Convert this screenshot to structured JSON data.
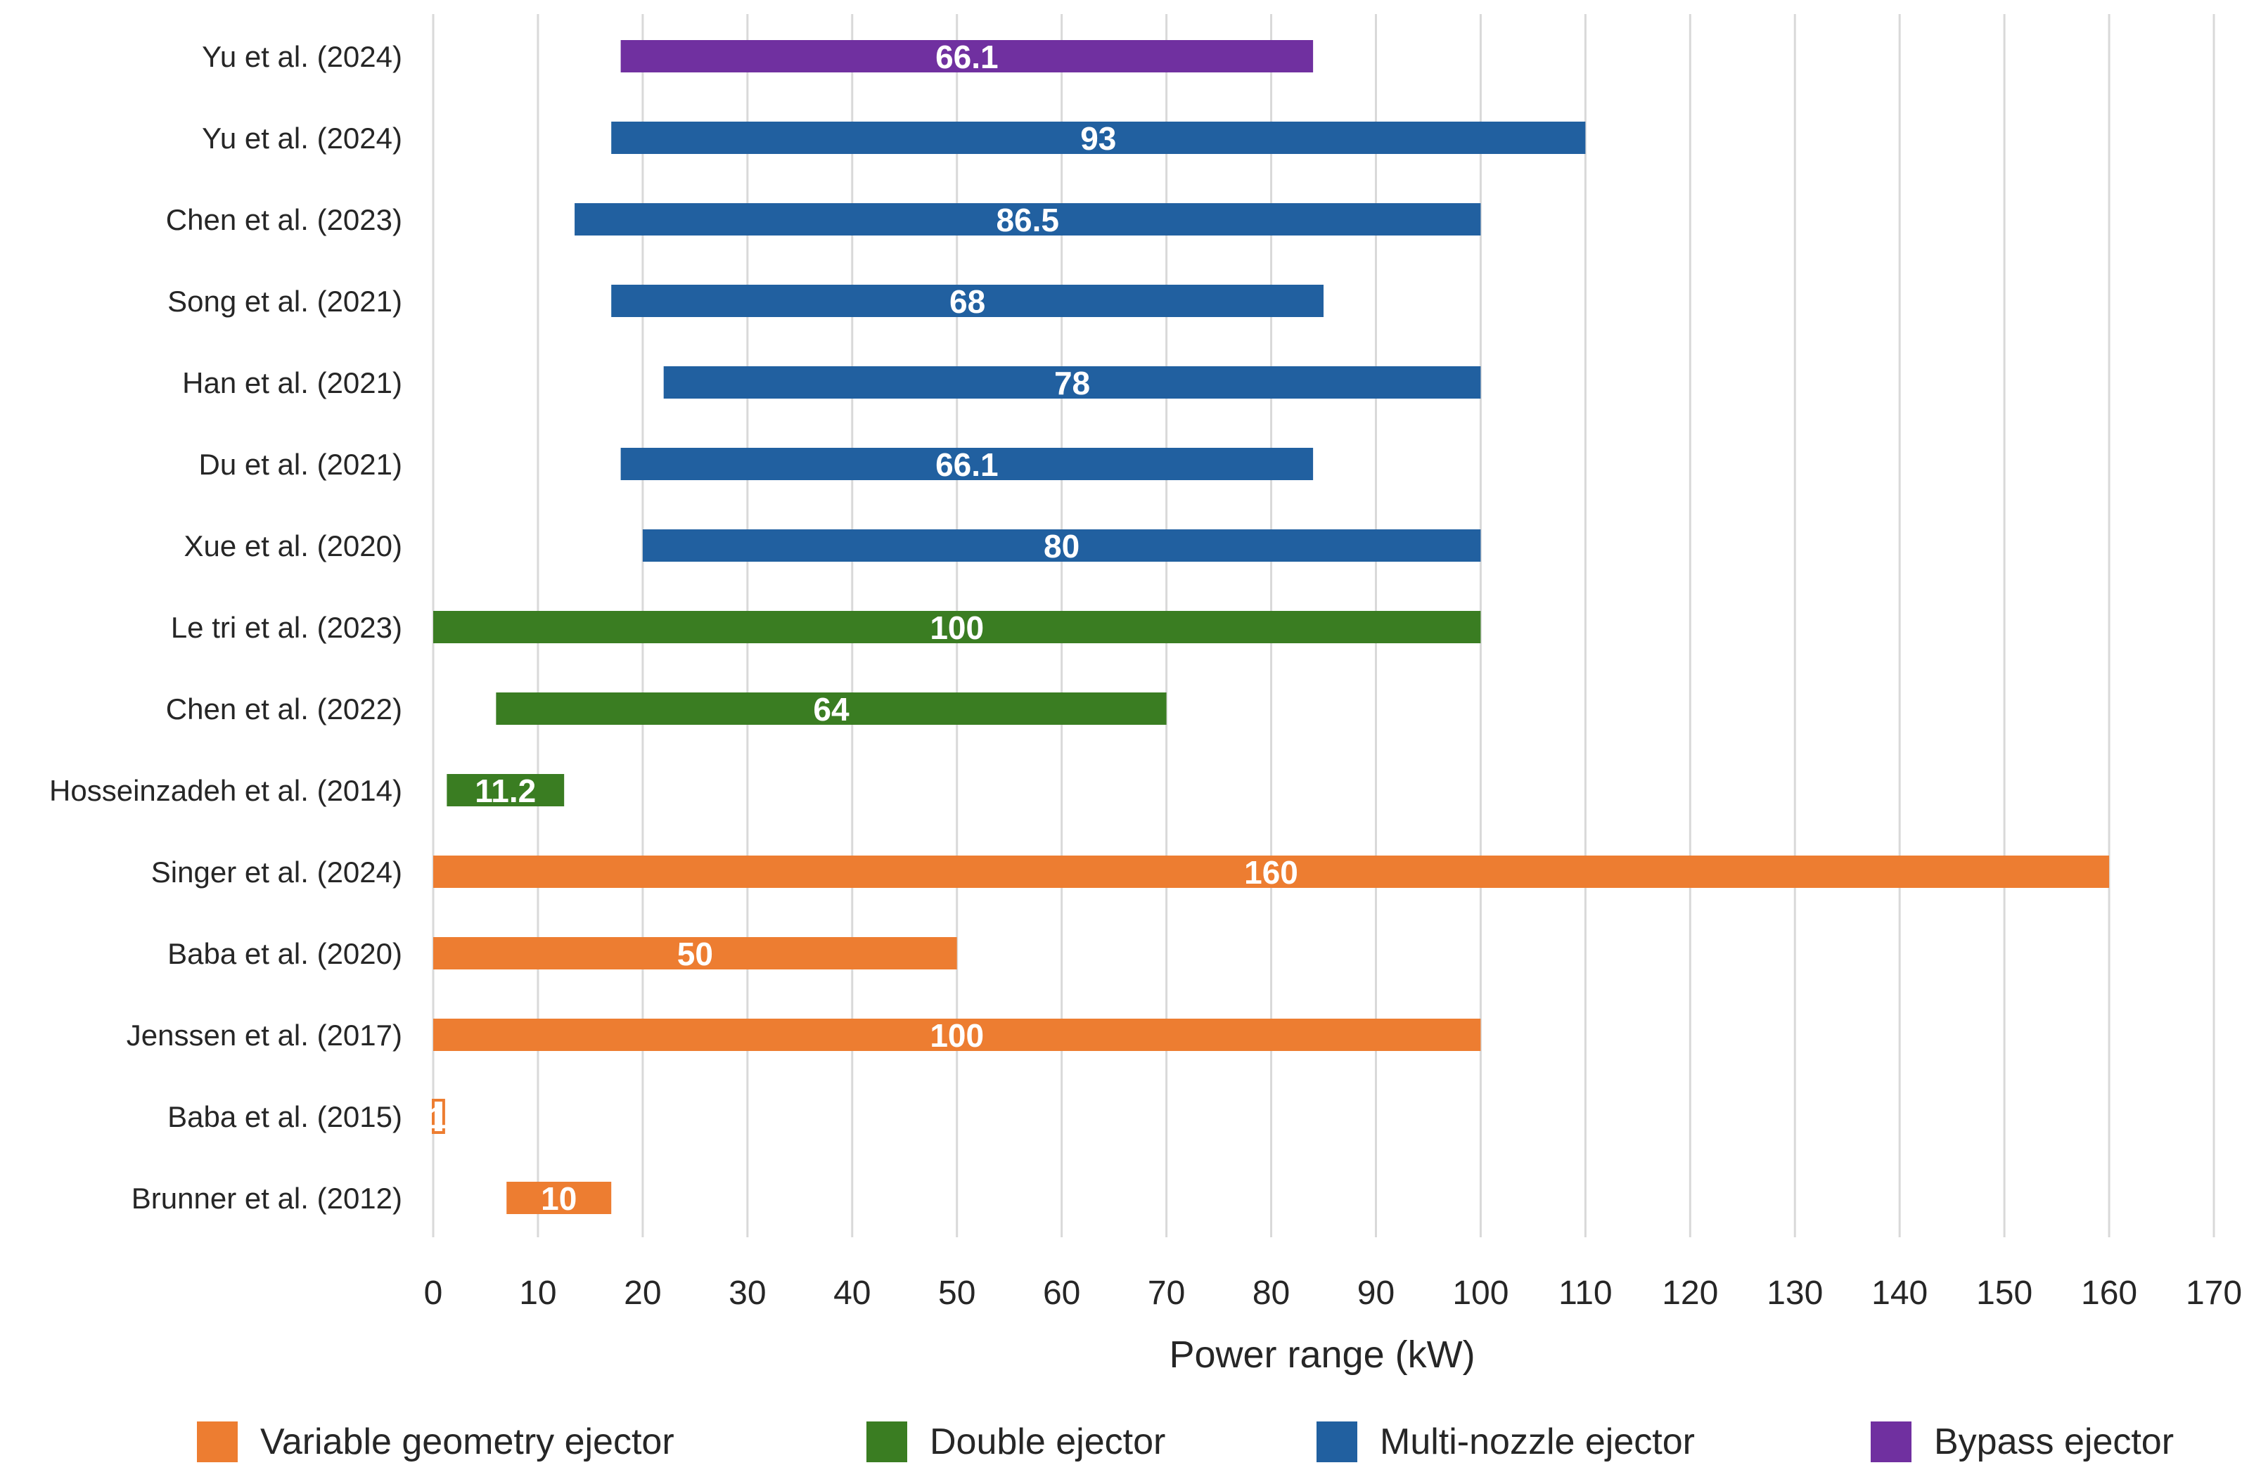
{
  "chart_data": {
    "type": "bar",
    "orientation": "horizontal",
    "title": "",
    "xlabel": "Power range (kW)",
    "ylabel": "",
    "xlim": [
      0,
      170
    ],
    "x_ticks": [
      0,
      10,
      20,
      30,
      40,
      50,
      60,
      70,
      80,
      90,
      100,
      110,
      120,
      130,
      140,
      150,
      160,
      170
    ],
    "grid": true,
    "legend_position": "bottom",
    "series_colors": {
      "Variable geometry ejector": "#ED7D31",
      "Double ejector": "#3A7D22",
      "Multi-nozzle ejector": "#2160A0",
      "Bypass ejector": "#7030A0"
    },
    "legend": [
      "Variable geometry ejector",
      "Double ejector",
      "Multi-nozzle ejector",
      "Bypass ejector"
    ],
    "bars": [
      {
        "label": "Yu et al. (2024)",
        "series": "Bypass ejector",
        "start": 17.9,
        "end": 84,
        "value_label": "66.1"
      },
      {
        "label": "Yu et al. (2024)",
        "series": "Multi-nozzle ejector",
        "start": 17,
        "end": 110,
        "value_label": "93"
      },
      {
        "label": "Chen et al. (2023)",
        "series": "Multi-nozzle ejector",
        "start": 13.5,
        "end": 100,
        "value_label": "86.5"
      },
      {
        "label": "Song et al. (2021)",
        "series": "Multi-nozzle ejector",
        "start": 17,
        "end": 85,
        "value_label": "68"
      },
      {
        "label": "Han et al. (2021)",
        "series": "Multi-nozzle ejector",
        "start": 22,
        "end": 100,
        "value_label": "78"
      },
      {
        "label": "Du et al. (2021)",
        "series": "Multi-nozzle ejector",
        "start": 17.9,
        "end": 84,
        "value_label": "66.1"
      },
      {
        "label": "Xue et al. (2020)",
        "series": "Multi-nozzle ejector",
        "start": 20,
        "end": 100,
        "value_label": "80"
      },
      {
        "label": "Le tri et al. (2023)",
        "series": "Double ejector",
        "start": 0,
        "end": 100,
        "value_label": "100"
      },
      {
        "label": "Chen et al. (2022)",
        "series": "Double ejector",
        "start": 6,
        "end": 70,
        "value_label": "64"
      },
      {
        "label": "Hosseinzadeh et al. (2014)",
        "series": "Double ejector",
        "start": 1.3,
        "end": 12.5,
        "value_label": "11.2"
      },
      {
        "label": "Singer et al. (2024)",
        "series": "Variable geometry ejector",
        "start": 0,
        "end": 160,
        "value_label": "160"
      },
      {
        "label": "Baba et al. (2020)",
        "series": "Variable geometry ejector",
        "start": 0,
        "end": 50,
        "value_label": "50"
      },
      {
        "label": "Jenssen et al. (2017)",
        "series": "Variable geometry ejector",
        "start": 0,
        "end": 100,
        "value_label": "100"
      },
      {
        "label": "Baba et al. (2015)",
        "series": "Variable geometry ejector",
        "start": 0,
        "end": 1,
        "value_label": "1"
      },
      {
        "label": "Brunner et al. (2012)",
        "series": "Variable geometry ejector",
        "start": 7,
        "end": 17,
        "value_label": "10"
      }
    ]
  }
}
